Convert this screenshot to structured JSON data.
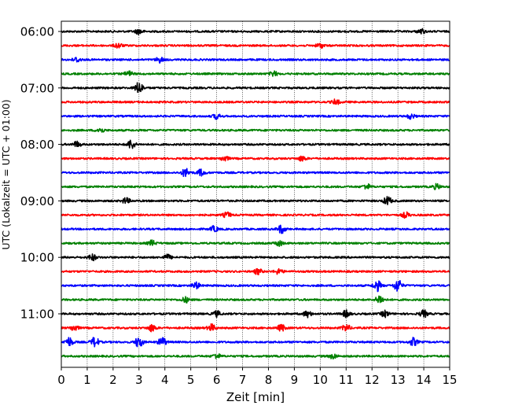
{
  "chart_data": {
    "type": "line",
    "title": "",
    "xlabel": "Zeit  [min]",
    "ylabel": "UTC (Lokalzeit = UTC + 01:00)",
    "xlim": [
      0,
      15
    ],
    "x_ticks": [
      "0",
      "1",
      "2",
      "3",
      "4",
      "5",
      "6",
      "7",
      "8",
      "9",
      "10",
      "11",
      "12",
      "13",
      "14",
      "15"
    ],
    "y_ticks": [
      {
        "label": "06:00",
        "trace": 0
      },
      {
        "label": "07:00",
        "trace": 4
      },
      {
        "label": "08:00",
        "trace": 8
      },
      {
        "label": "09:00",
        "trace": 12
      },
      {
        "label": "10:00",
        "trace": 16
      },
      {
        "label": "11:00",
        "trace": 20
      }
    ],
    "grid": "vertical dotted at each minute",
    "color_cycle": [
      "#000000",
      "#ff0000",
      "#0000ff",
      "#008000"
    ],
    "series": [
      {
        "start": "06:00",
        "color": "#000000",
        "bursts": [
          [
            3.0,
            1.5
          ],
          [
            13.9,
            1.4
          ]
        ]
      },
      {
        "start": "06:15",
        "color": "#ff0000",
        "bursts": [
          [
            2.2,
            1.4
          ],
          [
            10.0,
            1.3
          ]
        ]
      },
      {
        "start": "06:30",
        "color": "#0000ff",
        "bursts": [
          [
            0.6,
            1.4
          ],
          [
            3.8,
            1.5
          ]
        ]
      },
      {
        "start": "06:45",
        "color": "#008000",
        "bursts": [
          [
            2.6,
            1.5
          ],
          [
            8.2,
            1.4
          ]
        ]
      },
      {
        "start": "07:00",
        "color": "#000000",
        "bursts": [
          [
            3.0,
            3.5
          ]
        ]
      },
      {
        "start": "07:15",
        "color": "#ff0000",
        "bursts": [
          [
            10.6,
            1.4
          ]
        ]
      },
      {
        "start": "07:30",
        "color": "#0000ff",
        "bursts": [
          [
            6.0,
            1.4
          ],
          [
            13.5,
            1.4
          ]
        ]
      },
      {
        "start": "07:45",
        "color": "#008000",
        "bursts": [
          [
            1.5,
            1.4
          ]
        ]
      },
      {
        "start": "08:00",
        "color": "#000000",
        "bursts": [
          [
            2.7,
            2.6
          ],
          [
            0.6,
            1.6
          ]
        ]
      },
      {
        "start": "08:15",
        "color": "#ff0000",
        "bursts": [
          [
            6.3,
            1.5
          ],
          [
            9.3,
            1.4
          ]
        ]
      },
      {
        "start": "08:30",
        "color": "#0000ff",
        "bursts": [
          [
            4.8,
            2.4
          ],
          [
            5.4,
            1.8
          ]
        ]
      },
      {
        "start": "08:45",
        "color": "#008000",
        "bursts": [
          [
            11.8,
            1.5
          ],
          [
            14.5,
            1.4
          ]
        ]
      },
      {
        "start": "09:00",
        "color": "#000000",
        "bursts": [
          [
            12.6,
            2.4
          ],
          [
            2.5,
            1.6
          ]
        ]
      },
      {
        "start": "09:15",
        "color": "#ff0000",
        "bursts": [
          [
            6.4,
            1.5
          ],
          [
            13.3,
            1.5
          ]
        ]
      },
      {
        "start": "09:30",
        "color": "#0000ff",
        "bursts": [
          [
            8.5,
            2.4
          ],
          [
            5.9,
            1.6
          ]
        ]
      },
      {
        "start": "09:45",
        "color": "#008000",
        "bursts": [
          [
            3.5,
            1.5
          ],
          [
            8.4,
            1.5
          ]
        ]
      },
      {
        "start": "10:00",
        "color": "#000000",
        "bursts": [
          [
            1.2,
            1.8
          ],
          [
            4.1,
            1.5
          ]
        ]
      },
      {
        "start": "10:15",
        "color": "#ff0000",
        "bursts": [
          [
            7.6,
            1.6
          ],
          [
            8.4,
            1.5
          ]
        ]
      },
      {
        "start": "10:30",
        "color": "#0000ff",
        "bursts": [
          [
            12.2,
            3.0
          ],
          [
            13.0,
            3.6
          ],
          [
            5.2,
            1.8
          ]
        ]
      },
      {
        "start": "10:45",
        "color": "#008000",
        "bursts": [
          [
            12.3,
            2.6
          ],
          [
            4.8,
            1.5
          ]
        ]
      },
      {
        "start": "11:00",
        "color": "#000000",
        "bursts": [
          [
            14.0,
            2.0
          ],
          [
            9.5,
            1.8
          ],
          [
            11.0,
            1.9
          ],
          [
            12.5,
            1.8
          ],
          [
            6.0,
            1.6
          ]
        ]
      },
      {
        "start": "11:15",
        "color": "#ff0000",
        "bursts": [
          [
            3.5,
            2.0
          ],
          [
            5.8,
            2.0
          ],
          [
            8.5,
            1.8
          ],
          [
            11.0,
            2.0
          ],
          [
            0.5,
            1.7
          ]
        ]
      },
      {
        "start": "11:30",
        "color": "#0000ff",
        "bursts": [
          [
            0.3,
            2.6
          ],
          [
            1.3,
            2.8
          ],
          [
            3.0,
            3.2
          ],
          [
            3.9,
            2.6
          ],
          [
            13.6,
            2.2
          ]
        ]
      },
      {
        "start": "11:45",
        "color": "#008000",
        "bursts": [
          [
            6.0,
            1.4
          ],
          [
            10.5,
            1.4
          ]
        ]
      }
    ]
  }
}
